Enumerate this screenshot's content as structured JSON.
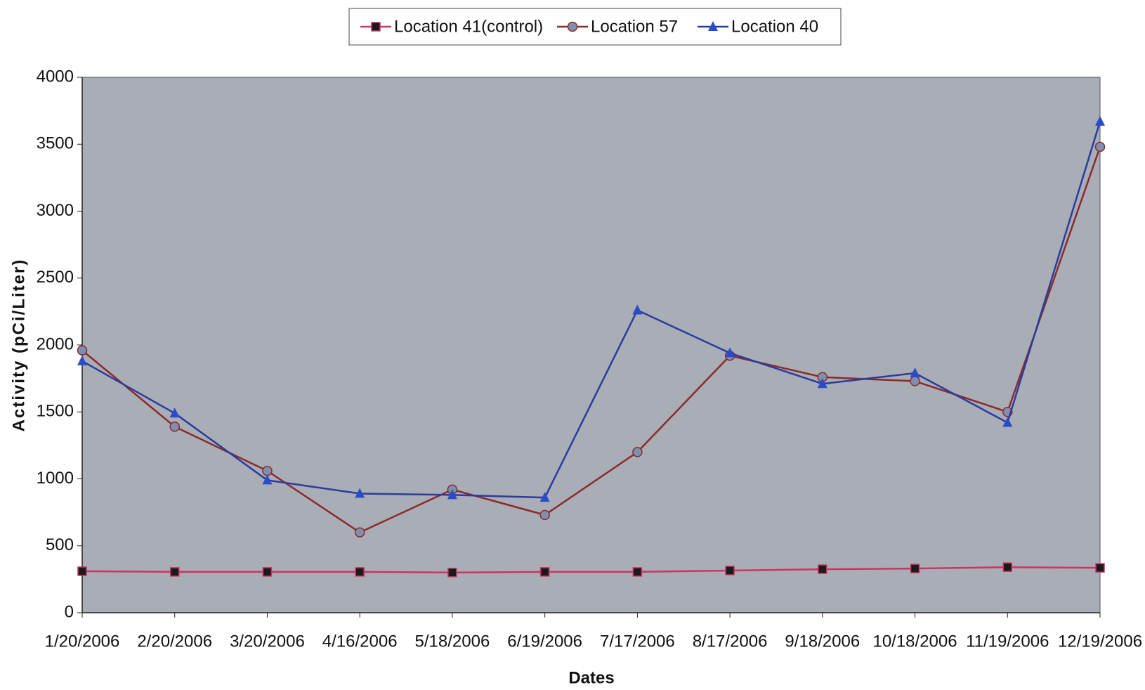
{
  "chart_data": {
    "type": "line",
    "xlabel": "Dates",
    "ylabel": "Activity (pCi/Liter)",
    "categories": [
      "1/20/2006",
      "2/20/2006",
      "3/20/2006",
      "4/16/2006",
      "5/18/2006",
      "6/19/2006",
      "7/17/2006",
      "8/17/2006",
      "9/18/2006",
      "10/18/2006",
      "11/19/2006",
      "12/19/2006"
    ],
    "series": [
      {
        "name": "Location 41(control)",
        "color": "#cc3366",
        "marker": "square",
        "marker_color": "#1a1a1a",
        "values": [
          310,
          305,
          305,
          305,
          300,
          305,
          305,
          315,
          325,
          330,
          340,
          335
        ]
      },
      {
        "name": "Location 57",
        "color": "#8b2a2a",
        "marker": "circle",
        "marker_color": "#7f8fb0",
        "values": [
          1960,
          1390,
          1060,
          600,
          920,
          730,
          1200,
          1920,
          1760,
          1730,
          1500,
          3480
        ]
      },
      {
        "name": "Location 40",
        "color": "#2a3ca0",
        "marker": "triangle",
        "marker_color": "#2a4cc8",
        "values": [
          1880,
          1490,
          990,
          890,
          880,
          860,
          2260,
          1940,
          1710,
          1790,
          1420,
          3670
        ]
      }
    ],
    "ylim": [
      0,
      4000
    ],
    "yticks": [
      0,
      500,
      1000,
      1500,
      2000,
      2500,
      3000,
      3500,
      4000
    ],
    "plot_background": "#a9adb5",
    "legend": "top"
  }
}
